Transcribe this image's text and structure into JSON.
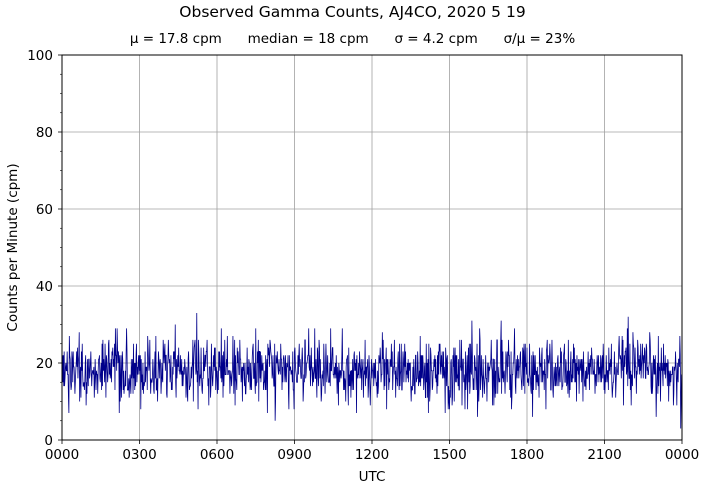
{
  "chart_data": {
    "type": "line",
    "title": "Observed Gamma Counts, AJ4CO, 2020 5 19",
    "subtitle": {
      "mean": "μ = 17.8 cpm",
      "median": "median = 18 cpm",
      "sigma": "σ = 4.2 cpm",
      "ratio": "σ/μ = 23%"
    },
    "xlabel": "UTC",
    "ylabel": "Counts per Minute (cpm)",
    "xlim_minutes": [
      0,
      1440
    ],
    "ylim": [
      0,
      100
    ],
    "x_ticks": [
      "0000",
      "0300",
      "0600",
      "0900",
      "1200",
      "1500",
      "1800",
      "2100",
      "0000"
    ],
    "y_ticks": [
      "0",
      "20",
      "40",
      "60",
      "80",
      "100"
    ],
    "grid": true,
    "series": [
      {
        "color": "#00008b",
        "sampling": "one value per minute, 1440 points",
        "mean": 17.8,
        "std": 4.2,
        "notable_points": [
          {
            "minute": 313,
            "value": 33
          },
          {
            "minute": 263,
            "value": 30
          },
          {
            "minute": 1020,
            "value": 31
          },
          {
            "minute": 952,
            "value": 31
          },
          {
            "minute": 1315,
            "value": 32
          },
          {
            "minute": 1437,
            "value": 3
          },
          {
            "minute": 495,
            "value": 5
          },
          {
            "minute": 477,
            "value": 7
          }
        ]
      }
    ]
  }
}
